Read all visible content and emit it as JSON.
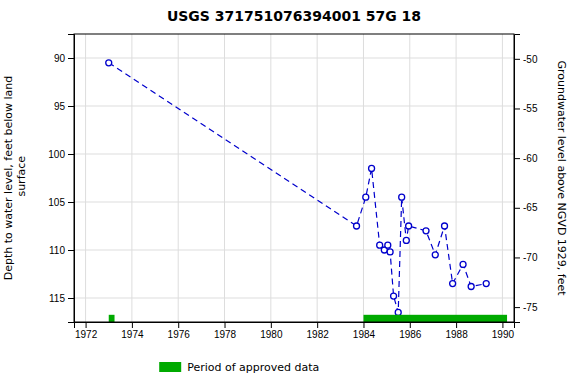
{
  "chart_data": {
    "type": "line",
    "title": "USGS 371751076394001 57G 18",
    "y_label": "Depth to water level, feet below land\n surface",
    "y2_label": "Groundwater level above NGVD 1929, feet",
    "x": [
      1973.0,
      1983.7,
      1984.1,
      1984.35,
      1984.7,
      1984.9,
      1985.05,
      1985.15,
      1985.3,
      1985.5,
      1985.65,
      1985.85,
      1985.95,
      1986.7,
      1987.1,
      1987.5,
      1987.85,
      1988.3,
      1988.65,
      1989.3
    ],
    "series": [
      {
        "values": [
          90.5,
          107.5,
          104.5,
          101.5,
          109.5,
          110.0,
          109.5,
          110.2,
          114.8,
          116.5,
          104.5,
          109.0,
          107.5,
          108.0,
          110.5,
          107.5,
          113.5,
          111.5,
          113.8,
          113.5
        ],
        "color": "#0000cc",
        "line_style": "dashed",
        "marker": "circle"
      }
    ],
    "spans": [
      {
        "name": "Period of approved data",
        "color": "#00aa00",
        "values": [
          [
            1973.0,
            1973.25
          ],
          [
            1984.0,
            1990.2
          ]
        ]
      }
    ],
    "xlim": [
      1971.5,
      1990.5
    ],
    "xticks": [
      1972,
      1974,
      1976,
      1978,
      1980,
      1982,
      1984,
      1986,
      1988,
      1990
    ],
    "ylim": [
      117.5,
      87.5
    ],
    "yticks": [
      90,
      95,
      100,
      105,
      110,
      115
    ],
    "y2lim": [
      -76.5,
      -47.5
    ],
    "y2ticks": [
      -50,
      -55,
      -60,
      -65,
      -70,
      -75
    ],
    "grid": true,
    "legend": "bottom"
  }
}
